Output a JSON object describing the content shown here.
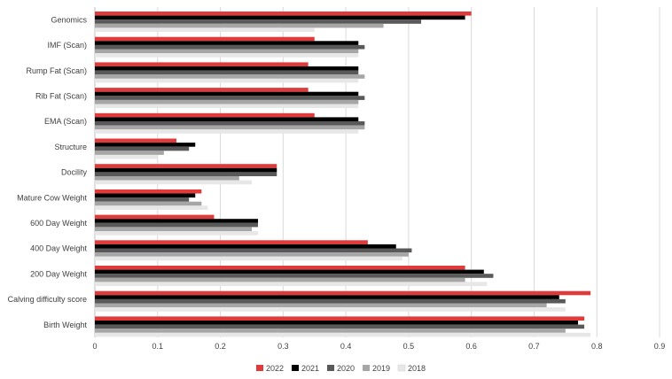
{
  "chart_data": {
    "type": "bar",
    "orientation": "horizontal",
    "categories": [
      "Genomics",
      "IMF (Scan)",
      "Rump Fat (Scan)",
      "Rib Fat (Scan)",
      "EMA (Scan)",
      "Structure",
      "Docility",
      "Mature Cow Weight",
      "600 Day Weight",
      "400 Day Weight",
      "200 Day Weight",
      "Calving difficulty score",
      "Birth Weight"
    ],
    "series": [
      {
        "name": "2022",
        "color": "#e03a3a",
        "values": [
          0.6,
          0.35,
          0.34,
          0.34,
          0.35,
          0.13,
          0.29,
          0.17,
          0.19,
          0.435,
          0.59,
          0.79,
          0.78
        ]
      },
      {
        "name": "2021",
        "color": "#000000",
        "values": [
          0.59,
          0.42,
          0.42,
          0.42,
          0.42,
          0.16,
          0.29,
          0.16,
          0.26,
          0.48,
          0.62,
          0.74,
          0.77
        ]
      },
      {
        "name": "2020",
        "color": "#595959",
        "values": [
          0.52,
          0.43,
          0.42,
          0.43,
          0.43,
          0.15,
          0.29,
          0.15,
          0.26,
          0.505,
          0.635,
          0.75,
          0.78
        ]
      },
      {
        "name": "2019",
        "color": "#a6a6a6",
        "values": [
          0.46,
          0.42,
          0.43,
          0.42,
          0.43,
          0.11,
          0.23,
          0.17,
          0.25,
          0.5,
          0.59,
          0.72,
          0.75
        ]
      },
      {
        "name": "2018",
        "color": "#e7e7e7",
        "values": [
          0.35,
          0.42,
          0.42,
          0.42,
          0.42,
          0.1,
          0.25,
          0.18,
          0.26,
          0.49,
          0.625,
          0.75,
          0.79
        ]
      }
    ],
    "xlim": [
      0,
      0.9
    ],
    "xticks": [
      "0",
      "0.1",
      "0.2",
      "0.3",
      "0.4",
      "0.5",
      "0.6",
      "0.7",
      "0.8",
      "0.9"
    ],
    "grid": "vertical",
    "legend_position": "bottom"
  }
}
